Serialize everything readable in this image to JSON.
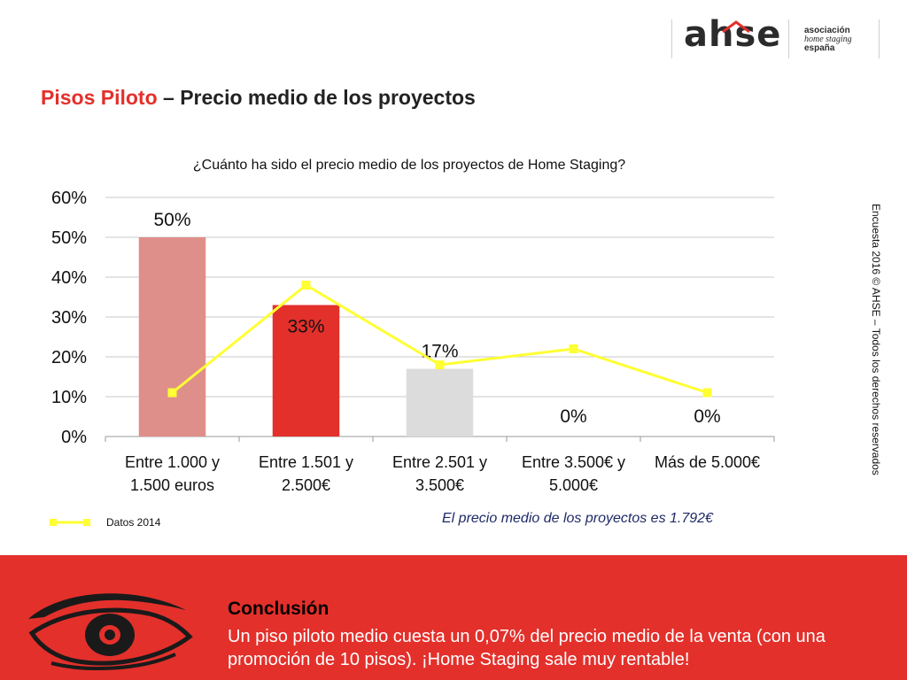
{
  "header": {
    "logo_word": "ahse",
    "logo_lines": [
      "asociación",
      "home staging",
      "españa"
    ],
    "title_accent": "Pisos Piloto",
    "title_rest": " – Precio medio de los proyectos"
  },
  "question": "¿Cuánto ha sido el precio medio de los proyectos de Home Staging?",
  "side_text": "Encuesta 2016 © AHSE – Todos los derechos reservados",
  "colors": {
    "accent": "#e3302b",
    "bar_1": "#df8f8a",
    "bar_2": "#e3302b",
    "bar_3": "#dcdcdc",
    "line_2014": "#ffff33"
  },
  "chart_data": {
    "type": "bar",
    "categories": [
      [
        "Entre 1.000 y",
        "1.500 euros"
      ],
      [
        "Entre 1.501 y",
        "2.500€"
      ],
      [
        "Entre 2.501 y",
        "3.500€"
      ],
      [
        "Entre 3.500€ y",
        "5.000€"
      ],
      [
        "Más de 5.000€"
      ]
    ],
    "series": [
      {
        "values": [
          50,
          33,
          17,
          0,
          0
        ],
        "data_labels": [
          "50%",
          "33%",
          "17%",
          "0%",
          "0%"
        ]
      },
      {
        "name": "Datos 2014",
        "type": "line",
        "values": [
          11,
          38,
          18,
          22,
          11
        ]
      }
    ],
    "yticks": [
      "0%",
      "10%",
      "20%",
      "30%",
      "40%",
      "50%",
      "60%"
    ],
    "ylim": [
      0,
      60
    ],
    "grid": true,
    "legend_position": "bottom-left"
  },
  "legend": {
    "label": "Datos 2014"
  },
  "note": "El precio medio de los proyectos es 1.792€",
  "conclusion": {
    "heading": "Conclusión",
    "text": "Un piso piloto medio cuesta un 0,07% del precio medio de la venta (con una promoción de 10 pisos). ¡Home Staging sale muy rentable!"
  }
}
